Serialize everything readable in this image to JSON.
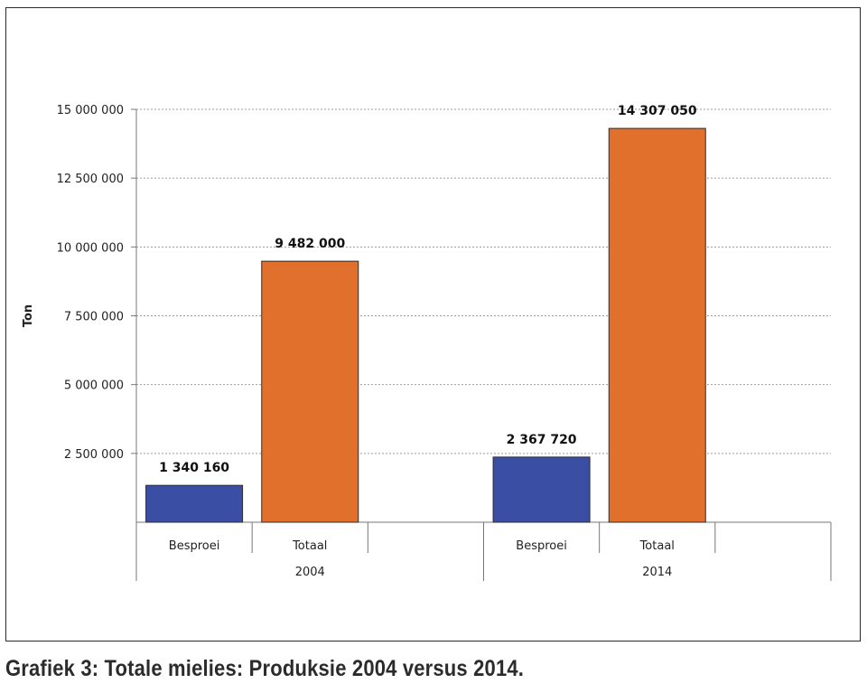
{
  "caption": "Grafiek 3: Totale mielies: Produksie 2004 versus 2014.",
  "chart_data": {
    "type": "bar",
    "ylabel": "Ton",
    "ylim": [
      0,
      15000000
    ],
    "yticks": [
      2500000,
      5000000,
      7500000,
      10000000,
      12500000,
      15000000
    ],
    "ytick_labels": [
      "2 500 000",
      "5 000 000",
      "7 500 000",
      "10 000 000",
      "12 500 000",
      "15 000 000"
    ],
    "grid": true,
    "groups": [
      {
        "name": "2004",
        "bars": [
          {
            "category": "Besproei",
            "value": 1340160,
            "label": "1 340 160",
            "color": "#3a4fa3"
          },
          {
            "category": "Totaal",
            "value": 9482000,
            "label": "9 482 000",
            "color": "#e0702b"
          }
        ]
      },
      {
        "name": "2014",
        "bars": [
          {
            "category": "Besproei",
            "value": 2367720,
            "label": "2 367 720",
            "color": "#3a4fa3"
          },
          {
            "category": "Totaal",
            "value": 14307050,
            "label": "14 307 050",
            "color": "#e0702b"
          }
        ]
      }
    ]
  }
}
